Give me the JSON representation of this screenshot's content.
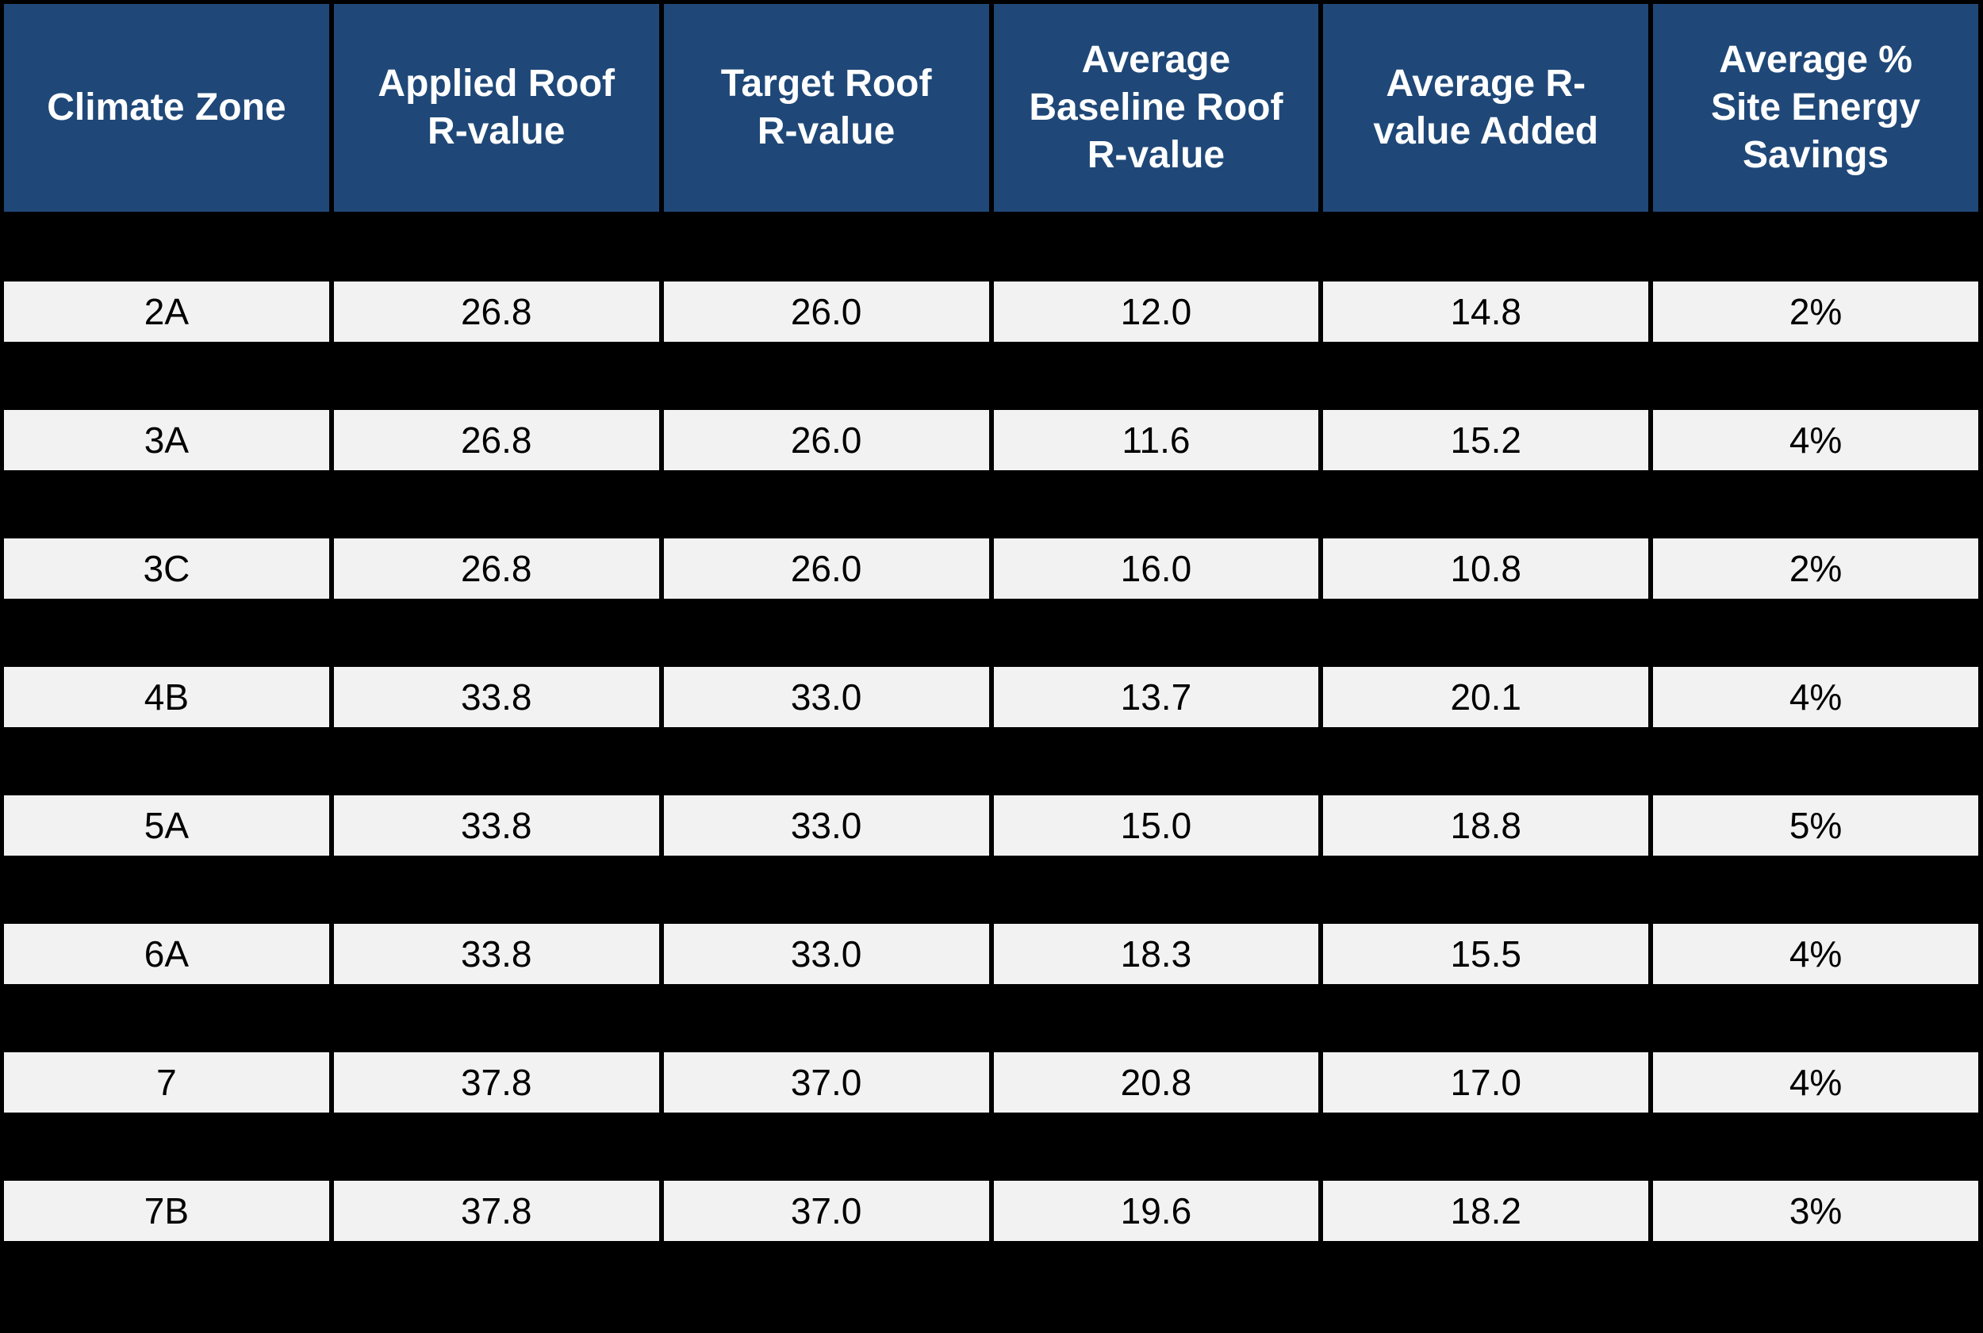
{
  "chart_data": {
    "type": "table",
    "columns": [
      "Climate Zone",
      "Applied Roof\nR-value",
      "Target Roof\nR-value",
      "Average\nBaseline Roof\nR-value",
      "Average R-\nvalue Added",
      "Average %\nSite Energy\nSavings"
    ],
    "rows": [
      [
        "2A",
        "26.8",
        "26.0",
        "12.0",
        "14.8",
        "2%"
      ],
      [
        "3A",
        "26.8",
        "26.0",
        "11.6",
        "15.2",
        "4%"
      ],
      [
        "3C",
        "26.8",
        "26.0",
        "16.0",
        "10.8",
        "2%"
      ],
      [
        "4B",
        "33.8",
        "33.0",
        "13.7",
        "20.1",
        "4%"
      ],
      [
        "5A",
        "33.8",
        "33.0",
        "15.0",
        "18.8",
        "5%"
      ],
      [
        "6A",
        "33.8",
        "33.0",
        "18.3",
        "15.5",
        "4%"
      ],
      [
        "7",
        "37.8",
        "37.0",
        "20.8",
        "17.0",
        "4%"
      ],
      [
        "7B",
        "37.8",
        "37.0",
        "19.6",
        "18.2",
        "3%"
      ]
    ],
    "colors": {
      "page_bg": "#000000",
      "header_bg": "#1F4878",
      "header_text": "#FFFFFF",
      "cell_bg": "#F2F2F2",
      "cell_text": "#000000"
    }
  }
}
